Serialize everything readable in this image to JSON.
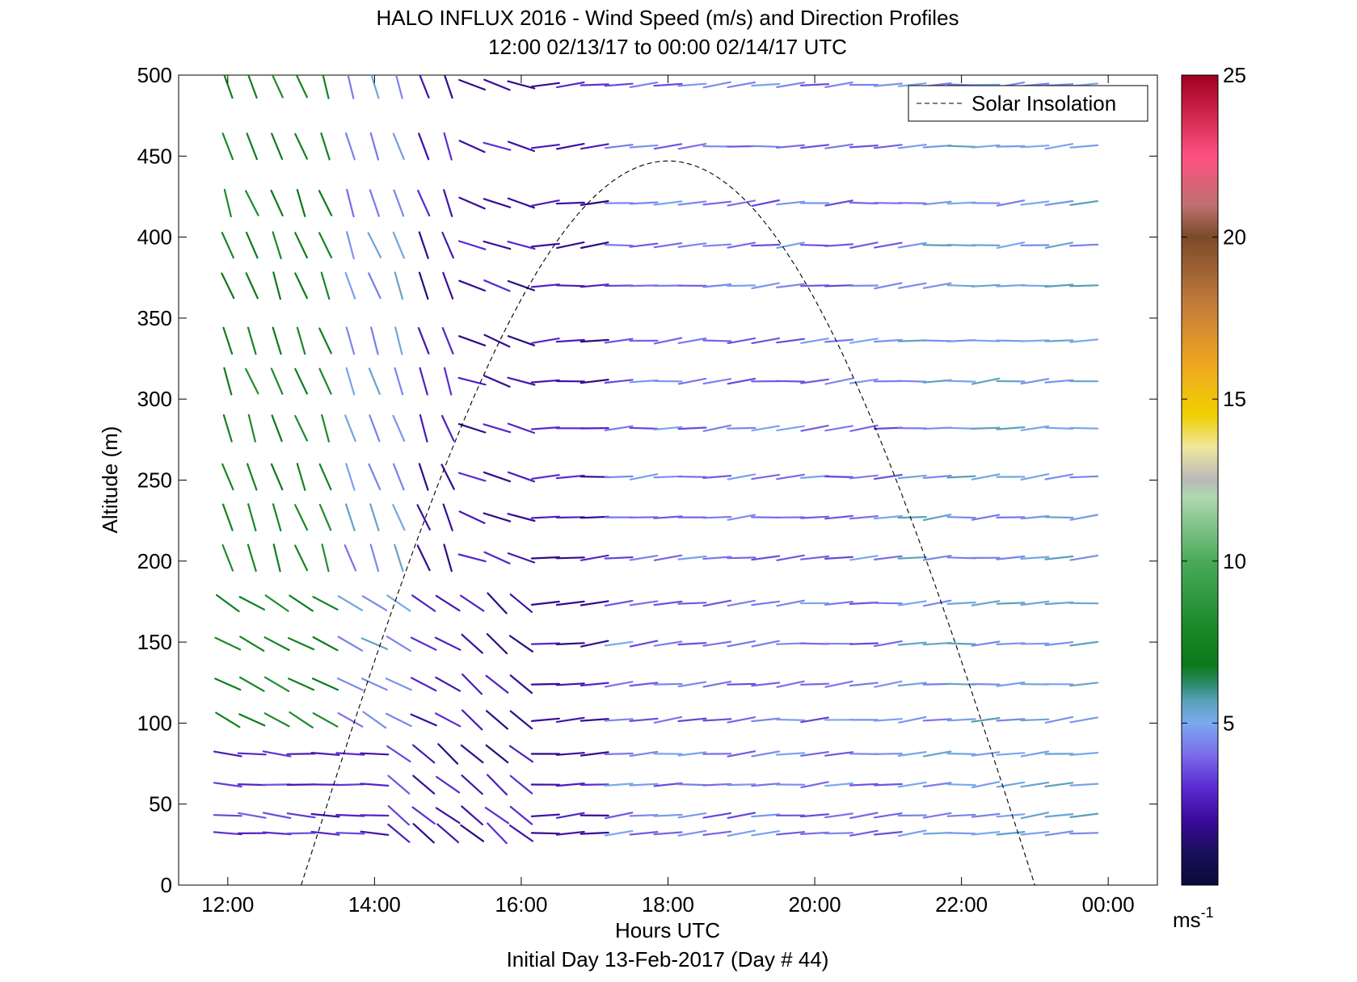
{
  "title": "HALO INFLUX 2016 - Wind Speed (m/s) and Direction Profiles",
  "subtitle": "12:00 02/13/17 to 00:00 02/14/17  UTC",
  "footer": "Initial Day 13-Feb-2017 (Day # 44)",
  "colorbar": {
    "unit_label": "ms",
    "unit_exponent": "-1",
    "ticks": [
      5,
      10,
      15,
      20,
      25
    ],
    "tick_labels": [
      "5",
      "10",
      "15",
      "20",
      "25"
    ],
    "range": [
      0,
      25
    ],
    "stops": [
      {
        "v": 0,
        "c": "#0a0a3a"
      },
      {
        "v": 1,
        "c": "#1a0f5a"
      },
      {
        "v": 2,
        "c": "#3a0a9a"
      },
      {
        "v": 3,
        "c": "#5a2ad0"
      },
      {
        "v": 4,
        "c": "#7a6ae8"
      },
      {
        "v": 5,
        "c": "#7aaaf0"
      },
      {
        "v": 5.7,
        "c": "#5aa0b8"
      },
      {
        "v": 6.2,
        "c": "#2a8a6a"
      },
      {
        "v": 6.8,
        "c": "#0a7a1a"
      },
      {
        "v": 8,
        "c": "#1a8a2a"
      },
      {
        "v": 10,
        "c": "#4aaa5a"
      },
      {
        "v": 12,
        "c": "#b0d8b0"
      },
      {
        "v": 12.5,
        "c": "#b8b8b8"
      },
      {
        "v": 13.5,
        "c": "#f0e6a0"
      },
      {
        "v": 14.5,
        "c": "#f0d000"
      },
      {
        "v": 16,
        "c": "#f0a820"
      },
      {
        "v": 18,
        "c": "#c07a3a"
      },
      {
        "v": 20,
        "c": "#7a4a2a"
      },
      {
        "v": 21,
        "c": "#c07070"
      },
      {
        "v": 22.5,
        "c": "#ff5080"
      },
      {
        "v": 25,
        "c": "#a00020"
      }
    ]
  },
  "chart_data": {
    "type": "wind_profile",
    "title": "HALO INFLUX 2016 - Wind Speed (m/s) and Direction Profiles",
    "subtitle": "12:00 02/13/17 to 00:00 02/14/17  UTC",
    "xlabel": "Hours UTC",
    "ylabel": "Altitude (m)",
    "xlim": [
      11.33,
      24.67
    ],
    "ylim": [
      0,
      500
    ],
    "xticks": [
      12,
      14,
      16,
      18,
      20,
      22,
      24
    ],
    "xtick_labels": [
      "12:00",
      "14:00",
      "16:00",
      "18:00",
      "20:00",
      "22:00",
      "00:00"
    ],
    "yticks": [
      0,
      50,
      100,
      150,
      200,
      250,
      300,
      350,
      400,
      450,
      500
    ],
    "ytick_labels": [
      "0",
      "50",
      "100",
      "150",
      "200",
      "250",
      "300",
      "350",
      "400",
      "450",
      "500"
    ],
    "legend": {
      "position": "top-right",
      "entries": [
        "Solar Insolation"
      ]
    },
    "solar_insolation": {
      "start_hour": 13.0,
      "end_hour": 23.0,
      "peak_hour": 18.0,
      "peak_altitude": 447
    },
    "wind_fields": {
      "times": [
        12.0,
        12.33,
        12.67,
        13.0,
        13.33,
        13.67,
        14.0,
        14.33,
        14.67,
        15.0,
        15.33,
        15.67,
        16.0,
        16.33,
        16.67,
        17.0,
        17.33,
        17.67,
        18.0,
        18.33,
        18.67,
        19.0,
        19.33,
        19.67,
        20.0,
        20.33,
        20.67,
        21.0,
        21.33,
        21.67,
        22.0,
        22.33,
        22.67,
        23.0,
        23.33,
        23.67
      ],
      "altitudes": [
        32,
        43,
        62,
        81,
        102,
        124,
        149,
        174,
        202,
        227,
        252,
        282,
        311,
        336,
        370,
        395,
        421,
        456,
        494
      ],
      "direction_regimes_deg": [
        {
          "hours": [
            12.0,
            15.0
          ],
          "altitudes": [
            180,
            500
          ],
          "direction": 340
        },
        {
          "hours": [
            12.0,
            15.0
          ],
          "altitudes": [
            100,
            180
          ],
          "direction": 300
        },
        {
          "hours": [
            12.0,
            14.2
          ],
          "altitudes": [
            0,
            100
          ],
          "direction": 275
        },
        {
          "hours": [
            14.2,
            16.0
          ],
          "altitudes": [
            0,
            180
          ],
          "direction": 310
        },
        {
          "hours": [
            15.0,
            16.0
          ],
          "altitudes": [
            180,
            500
          ],
          "direction": 290
        },
        {
          "hours": [
            16.0,
            24.0
          ],
          "altitudes": [
            0,
            500
          ],
          "direction": 265
        }
      ],
      "speed_regimes_ms": [
        {
          "hours": [
            12.0,
            13.5
          ],
          "altitudes": [
            100,
            500
          ],
          "speed": 7.5
        },
        {
          "hours": [
            13.5,
            14.5
          ],
          "altitudes": [
            100,
            500
          ],
          "speed": 4.8
        },
        {
          "hours": [
            12.0,
            14.5
          ],
          "altitudes": [
            0,
            100
          ],
          "speed": 3.0
        },
        {
          "hours": [
            14.5,
            17.0
          ],
          "altitudes": [
            0,
            500
          ],
          "speed": 2.3
        },
        {
          "hours": [
            17.0,
            21.0
          ],
          "altitudes": [
            0,
            500
          ],
          "speed": 4.2
        },
        {
          "hours": [
            21.0,
            24.0
          ],
          "altitudes": [
            0,
            500
          ],
          "speed": 5.0
        }
      ]
    }
  }
}
